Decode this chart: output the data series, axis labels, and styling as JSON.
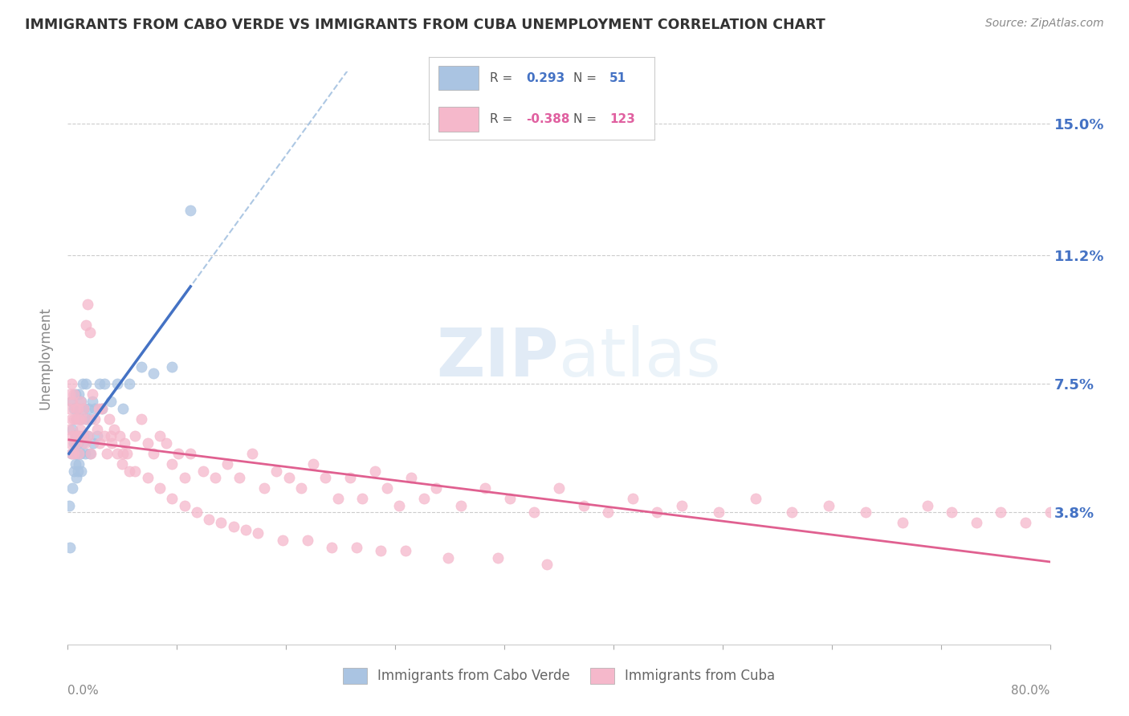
{
  "title": "IMMIGRANTS FROM CABO VERDE VS IMMIGRANTS FROM CUBA UNEMPLOYMENT CORRELATION CHART",
  "source": "Source: ZipAtlas.com",
  "ylabel": "Unemployment",
  "ytick_labels": [
    "3.8%",
    "7.5%",
    "11.2%",
    "15.0%"
  ],
  "ytick_values": [
    0.038,
    0.075,
    0.112,
    0.15
  ],
  "xmin": 0.0,
  "xmax": 0.8,
  "ymin": 0.0,
  "ymax": 0.165,
  "cabo_verde_color": "#aac4e2",
  "cuba_color": "#f5b8cb",
  "cabo_verde_line_color": "#4472c4",
  "cuba_line_color": "#e06090",
  "cabo_verde_dash_color": "#8ab0d8",
  "cabo_verde_R": 0.293,
  "cabo_verde_N": 51,
  "cuba_R": -0.388,
  "cuba_N": 123,
  "watermark_zip": "ZIP",
  "watermark_atlas": "atlas",
  "background_color": "#ffffff",
  "cabo_verde_x": [
    0.001,
    0.002,
    0.003,
    0.003,
    0.004,
    0.004,
    0.005,
    0.005,
    0.005,
    0.006,
    0.006,
    0.006,
    0.007,
    0.007,
    0.007,
    0.008,
    0.008,
    0.008,
    0.009,
    0.009,
    0.009,
    0.01,
    0.01,
    0.011,
    0.011,
    0.012,
    0.012,
    0.013,
    0.013,
    0.014,
    0.015,
    0.015,
    0.016,
    0.017,
    0.018,
    0.019,
    0.02,
    0.021,
    0.022,
    0.024,
    0.026,
    0.028,
    0.03,
    0.035,
    0.04,
    0.045,
    0.05,
    0.06,
    0.07,
    0.085,
    0.1
  ],
  "cabo_verde_y": [
    0.04,
    0.028,
    0.055,
    0.07,
    0.045,
    0.062,
    0.05,
    0.058,
    0.068,
    0.052,
    0.06,
    0.072,
    0.048,
    0.055,
    0.065,
    0.05,
    0.058,
    0.068,
    0.052,
    0.06,
    0.072,
    0.055,
    0.065,
    0.05,
    0.07,
    0.058,
    0.075,
    0.06,
    0.068,
    0.055,
    0.065,
    0.075,
    0.06,
    0.068,
    0.055,
    0.065,
    0.07,
    0.058,
    0.068,
    0.06,
    0.075,
    0.068,
    0.075,
    0.07,
    0.075,
    0.068,
    0.075,
    0.08,
    0.078,
    0.08,
    0.125
  ],
  "cuba_x": [
    0.001,
    0.001,
    0.002,
    0.002,
    0.003,
    0.003,
    0.003,
    0.004,
    0.004,
    0.005,
    0.005,
    0.005,
    0.006,
    0.006,
    0.007,
    0.007,
    0.008,
    0.008,
    0.009,
    0.009,
    0.01,
    0.01,
    0.011,
    0.012,
    0.013,
    0.014,
    0.015,
    0.015,
    0.016,
    0.017,
    0.018,
    0.019,
    0.02,
    0.022,
    0.024,
    0.026,
    0.028,
    0.03,
    0.032,
    0.034,
    0.036,
    0.038,
    0.04,
    0.042,
    0.044,
    0.046,
    0.048,
    0.05,
    0.055,
    0.06,
    0.065,
    0.07,
    0.075,
    0.08,
    0.085,
    0.09,
    0.095,
    0.1,
    0.11,
    0.12,
    0.13,
    0.14,
    0.15,
    0.16,
    0.17,
    0.18,
    0.19,
    0.2,
    0.21,
    0.22,
    0.23,
    0.24,
    0.25,
    0.26,
    0.27,
    0.28,
    0.29,
    0.3,
    0.32,
    0.34,
    0.36,
    0.38,
    0.4,
    0.42,
    0.44,
    0.46,
    0.48,
    0.5,
    0.53,
    0.56,
    0.59,
    0.62,
    0.65,
    0.68,
    0.7,
    0.72,
    0.74,
    0.76,
    0.78,
    0.8,
    0.025,
    0.035,
    0.045,
    0.055,
    0.065,
    0.075,
    0.085,
    0.095,
    0.105,
    0.115,
    0.125,
    0.135,
    0.145,
    0.155,
    0.175,
    0.195,
    0.215,
    0.235,
    0.255,
    0.275,
    0.31,
    0.35,
    0.39
  ],
  "cuba_y": [
    0.062,
    0.068,
    0.058,
    0.072,
    0.055,
    0.065,
    0.075,
    0.06,
    0.07,
    0.055,
    0.065,
    0.072,
    0.06,
    0.068,
    0.058,
    0.065,
    0.06,
    0.068,
    0.055,
    0.065,
    0.062,
    0.07,
    0.065,
    0.06,
    0.068,
    0.058,
    0.092,
    0.065,
    0.098,
    0.06,
    0.09,
    0.055,
    0.072,
    0.065,
    0.062,
    0.058,
    0.068,
    0.06,
    0.055,
    0.065,
    0.058,
    0.062,
    0.055,
    0.06,
    0.052,
    0.058,
    0.055,
    0.05,
    0.06,
    0.065,
    0.058,
    0.055,
    0.06,
    0.058,
    0.052,
    0.055,
    0.048,
    0.055,
    0.05,
    0.048,
    0.052,
    0.048,
    0.055,
    0.045,
    0.05,
    0.048,
    0.045,
    0.052,
    0.048,
    0.042,
    0.048,
    0.042,
    0.05,
    0.045,
    0.04,
    0.048,
    0.042,
    0.045,
    0.04,
    0.045,
    0.042,
    0.038,
    0.045,
    0.04,
    0.038,
    0.042,
    0.038,
    0.04,
    0.038,
    0.042,
    0.038,
    0.04,
    0.038,
    0.035,
    0.04,
    0.038,
    0.035,
    0.038,
    0.035,
    0.038,
    0.068,
    0.06,
    0.055,
    0.05,
    0.048,
    0.045,
    0.042,
    0.04,
    0.038,
    0.036,
    0.035,
    0.034,
    0.033,
    0.032,
    0.03,
    0.03,
    0.028,
    0.028,
    0.027,
    0.027,
    0.025,
    0.025,
    0.023
  ]
}
